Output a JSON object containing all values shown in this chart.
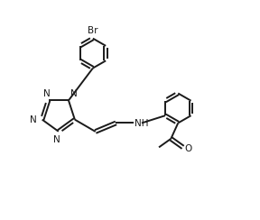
{
  "bg_color": "#ffffff",
  "line_color": "#1a1a1a",
  "line_width": 1.4,
  "font_size": 7.5,
  "fig_w": 2.88,
  "fig_h": 2.44,
  "dpi": 100,
  "xlim": [
    0,
    9
  ],
  "ylim": [
    0,
    7.5
  ]
}
